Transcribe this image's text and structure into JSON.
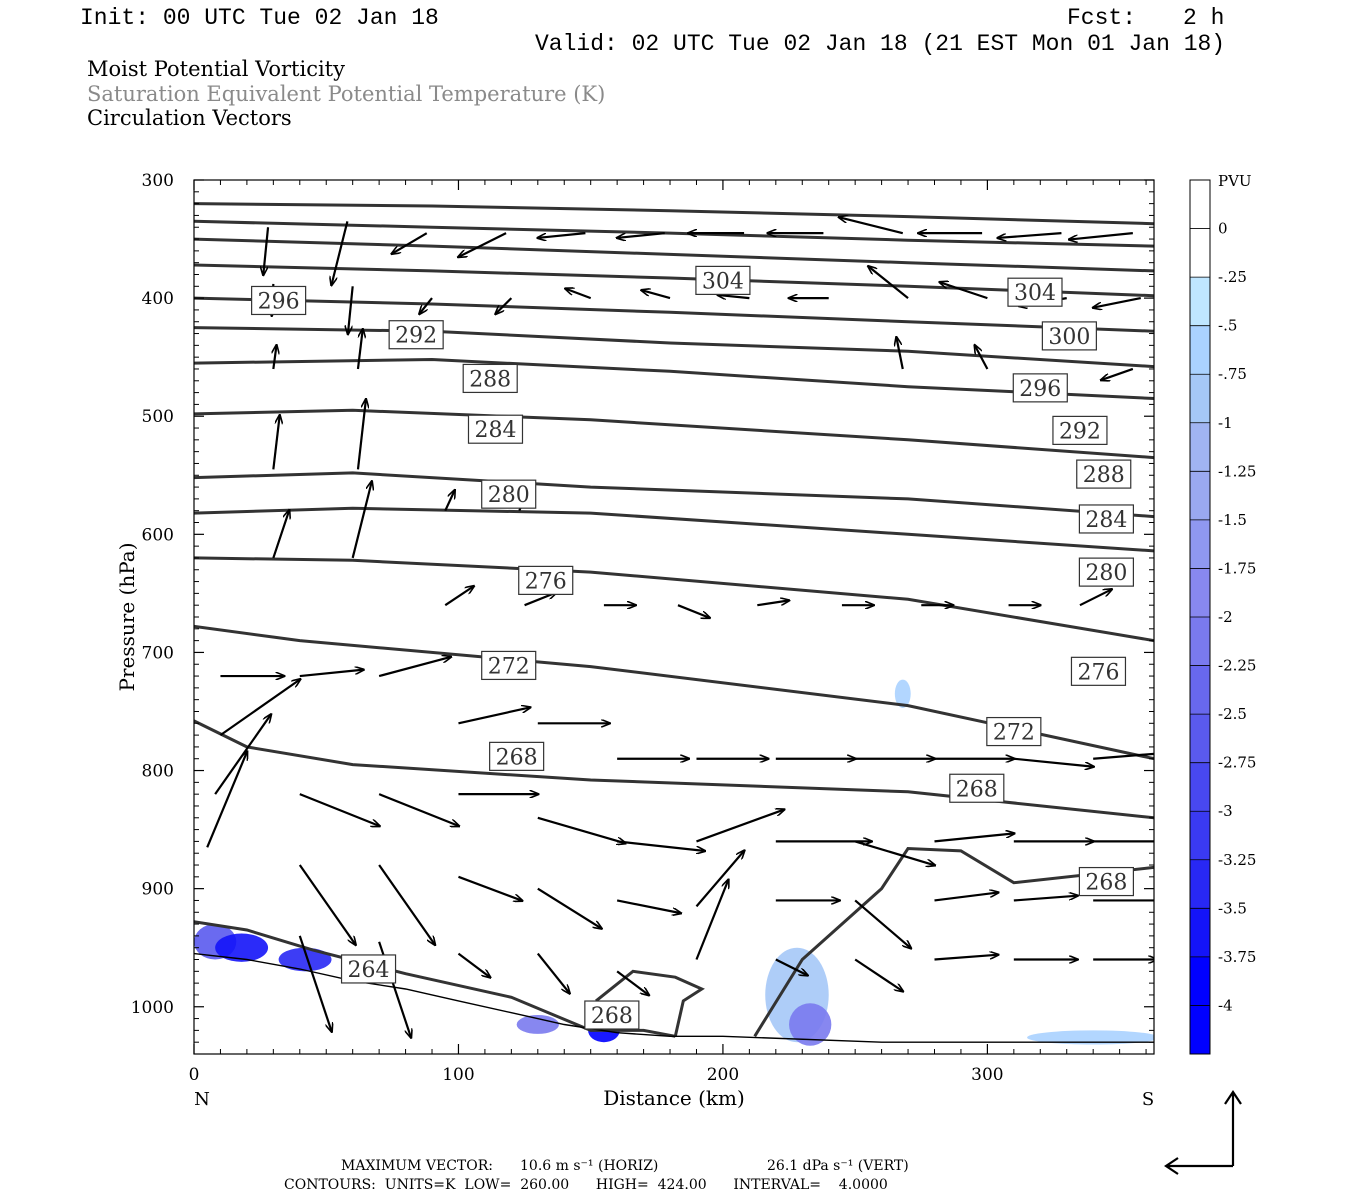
{
  "header": {
    "init": "Init: 00 UTC Tue 02 Jan 18",
    "fcst_label": "Fcst:",
    "fcst_value": "2 h",
    "valid": "Valid: 02 UTC Tue 02 Jan 18 (21 EST Mon 01 Jan 18)",
    "field1": "Moist Potential Vorticity",
    "field2": "Saturation Equivalent Potential Temperature (K)",
    "field3": "Circulation Vectors"
  },
  "footer": {
    "max_vector_label": "MAXIMUM VECTOR:",
    "max_horiz": "10.6 m s⁻¹ (HORIZ)",
    "max_vert": "26.1 dPa s⁻¹ (VERT)",
    "contours": "CONTOURS:  UNITS=K  LOW=  260.00      HIGH=  424.00      INTERVAL=    4.0000"
  },
  "chart_data": {
    "type": "cross-section",
    "xlabel": "Distance (km)",
    "ylabel": "Pressure (hPa)",
    "xlim": [
      0,
      363
    ],
    "ylim": [
      1040,
      300
    ],
    "x_ticks": [
      0,
      100,
      200,
      300
    ],
    "y_ticks": [
      300,
      400,
      500,
      600,
      700,
      800,
      900,
      1000
    ],
    "x_end_labels": {
      "left": "N",
      "right": "S"
    },
    "colorbar": {
      "unit": "PVU",
      "labels": [
        "0",
        "-.25",
        "-.5",
        "-.75",
        "-1",
        "-1.25",
        "-1.5",
        "-1.75",
        "-2",
        "-2.25",
        "-2.5",
        "-2.75",
        "-3",
        "-3.25",
        "-3.5",
        "-3.75",
        "-4"
      ],
      "colors": [
        "#ffffff",
        "#ffffff",
        "#bfe6ff",
        "#aad2ff",
        "#a5c8f7",
        "#a0b4f2",
        "#9aa9f0",
        "#8f98f0",
        "#8888ef",
        "#7a7aee",
        "#6868ee",
        "#5a5aee",
        "#4848f0",
        "#3a3af2",
        "#2828f4",
        "#1414f8",
        "#0000ff"
      ]
    },
    "contour_units": "K",
    "contour_low": 260,
    "contour_high": 424,
    "contour_interval": 4,
    "contours": [
      {
        "level": 304,
        "points": [
          [
            0,
            320
          ],
          [
            90,
            322
          ],
          [
            180,
            326
          ],
          [
            270,
            331
          ],
          [
            363,
            337
          ]
        ]
      },
      {
        "level": 304,
        "points": [
          [
            0,
            335
          ],
          [
            90,
            340
          ],
          [
            180,
            345
          ],
          [
            270,
            351
          ],
          [
            363,
            356
          ]
        ]
      },
      {
        "level": 304,
        "points": [
          [
            0,
            350
          ],
          [
            90,
            356
          ],
          [
            180,
            363
          ],
          [
            270,
            370
          ],
          [
            363,
            377
          ]
        ]
      },
      {
        "level": 304,
        "points": [
          [
            0,
            372
          ],
          [
            90,
            377
          ],
          [
            180,
            383
          ],
          [
            270,
            390
          ],
          [
            363,
            398
          ]
        ]
      },
      {
        "level": 300,
        "points": [
          [
            0,
            400
          ],
          [
            90,
            405
          ],
          [
            180,
            412
          ],
          [
            270,
            420
          ],
          [
            363,
            428
          ]
        ]
      },
      {
        "level": 296,
        "points": [
          [
            0,
            425
          ],
          [
            90,
            428
          ],
          [
            180,
            438
          ],
          [
            270,
            445
          ],
          [
            363,
            458
          ]
        ]
      },
      {
        "level": 292,
        "points": [
          [
            0,
            455
          ],
          [
            90,
            452
          ],
          [
            180,
            462
          ],
          [
            270,
            475
          ],
          [
            363,
            485
          ]
        ]
      },
      {
        "level": 288,
        "points": [
          [
            0,
            498
          ],
          [
            60,
            495
          ],
          [
            150,
            503
          ],
          [
            270,
            520
          ],
          [
            363,
            535
          ]
        ]
      },
      {
        "level": 284,
        "points": [
          [
            0,
            552
          ],
          [
            60,
            548
          ],
          [
            150,
            560
          ],
          [
            270,
            570
          ],
          [
            363,
            585
          ]
        ]
      },
      {
        "level": 280,
        "points": [
          [
            0,
            582
          ],
          [
            60,
            578
          ],
          [
            150,
            582
          ],
          [
            270,
            600
          ],
          [
            363,
            614
          ]
        ]
      },
      {
        "level": 276,
        "points": [
          [
            0,
            620
          ],
          [
            60,
            622
          ],
          [
            150,
            632
          ],
          [
            270,
            655
          ],
          [
            363,
            690
          ]
        ]
      },
      {
        "level": 272,
        "points": [
          [
            0,
            678
          ],
          [
            40,
            690
          ],
          [
            150,
            712
          ],
          [
            270,
            745
          ],
          [
            363,
            790
          ]
        ]
      },
      {
        "level": 268,
        "points": [
          [
            0,
            758
          ],
          [
            20,
            780
          ],
          [
            60,
            795
          ],
          [
            150,
            808
          ],
          [
            270,
            818
          ],
          [
            363,
            840
          ]
        ]
      },
      {
        "level": 268,
        "points": [
          [
            212,
            1025
          ],
          [
            230,
            960
          ],
          [
            260,
            900
          ],
          [
            270,
            866
          ],
          [
            290,
            868
          ],
          [
            310,
            895
          ],
          [
            363,
            882
          ]
        ]
      },
      {
        "level": 268,
        "points": [
          [
            0,
            928
          ],
          [
            20,
            935
          ],
          [
            45,
            952
          ],
          [
            80,
            972
          ],
          [
            120,
            992
          ],
          [
            150,
            1020
          ],
          [
            170,
            1020
          ],
          [
            182,
            1025
          ]
        ]
      },
      {
        "level": 268,
        "points": [
          [
            182,
            1025
          ],
          [
            185,
            995
          ],
          [
            192,
            985
          ],
          [
            182,
            975
          ],
          [
            166,
            970
          ],
          [
            152,
            995
          ]
        ]
      }
    ],
    "terrain": [
      [
        0,
        955
      ],
      [
        20,
        960
      ],
      [
        40,
        968
      ],
      [
        60,
        978
      ],
      [
        80,
        985
      ],
      [
        100,
        995
      ],
      [
        120,
        1005
      ],
      [
        140,
        1015
      ],
      [
        160,
        1022
      ],
      [
        180,
        1025
      ],
      [
        200,
        1025
      ],
      [
        260,
        1030
      ],
      [
        363,
        1030
      ]
    ],
    "vectors": [
      {
        "x": 28,
        "p": 340,
        "u": -0.3,
        "w": -3
      },
      {
        "x": 58,
        "p": 335,
        "u": -1,
        "w": -4
      },
      {
        "x": 88,
        "p": 345,
        "u": -2.2,
        "w": -1.3
      },
      {
        "x": 118,
        "p": 345,
        "u": -3,
        "w": -1.5
      },
      {
        "x": 148,
        "p": 345,
        "u": -3,
        "w": -0.3
      },
      {
        "x": 178,
        "p": 345,
        "u": -3,
        "w": -0.3
      },
      {
        "x": 208,
        "p": 345,
        "u": -3.5,
        "w": 0
      },
      {
        "x": 238,
        "p": 345,
        "u": -3.5,
        "w": 0
      },
      {
        "x": 268,
        "p": 345,
        "u": -4,
        "w": 1
      },
      {
        "x": 298,
        "p": 345,
        "u": -4,
        "w": 0
      },
      {
        "x": 328,
        "p": 345,
        "u": -4,
        "w": -0.3
      },
      {
        "x": 355,
        "p": 345,
        "u": -4,
        "w": -0.4
      },
      {
        "x": 30,
        "p": 388,
        "u": -0.1,
        "w": -2
      },
      {
        "x": 60,
        "p": 390,
        "u": -0.3,
        "w": -3
      },
      {
        "x": 90,
        "p": 400,
        "u": -0.8,
        "w": -1
      },
      {
        "x": 120,
        "p": 400,
        "u": -1,
        "w": -1
      },
      {
        "x": 150,
        "p": 400,
        "u": -1.6,
        "w": 0.6
      },
      {
        "x": 180,
        "p": 400,
        "u": -1.8,
        "w": 0.5
      },
      {
        "x": 210,
        "p": 400,
        "u": -2,
        "w": 0.2
      },
      {
        "x": 240,
        "p": 400,
        "u": -2.5,
        "w": 0
      },
      {
        "x": 270,
        "p": 400,
        "u": -2.5,
        "w": 2
      },
      {
        "x": 300,
        "p": 400,
        "u": -3,
        "w": 1
      },
      {
        "x": 330,
        "p": 400,
        "u": -3,
        "w": -0.5
      },
      {
        "x": 358,
        "p": 400,
        "u": -3,
        "w": -0.6
      },
      {
        "x": 30,
        "p": 460,
        "u": 0.2,
        "w": 1.5
      },
      {
        "x": 62,
        "p": 460,
        "u": 0.3,
        "w": 2.5
      },
      {
        "x": 268,
        "p": 460,
        "u": -0.4,
        "w": 2
      },
      {
        "x": 300,
        "p": 460,
        "u": -0.8,
        "w": 1.5
      },
      {
        "x": 355,
        "p": 460,
        "u": -2,
        "w": -0.7
      },
      {
        "x": 30,
        "p": 545,
        "u": 0.4,
        "w": 3.4
      },
      {
        "x": 62,
        "p": 545,
        "u": 0.5,
        "w": 4.4
      },
      {
        "x": 95,
        "p": 580,
        "u": 0.6,
        "w": 1.3
      },
      {
        "x": 123,
        "p": 580,
        "u": 0.5,
        "w": 1.2
      },
      {
        "x": 30,
        "p": 620,
        "u": 1,
        "w": 3
      },
      {
        "x": 60,
        "p": 620,
        "u": 1.2,
        "w": 4.8
      },
      {
        "x": 95,
        "p": 660,
        "u": 1.8,
        "w": 1.2
      },
      {
        "x": 125,
        "p": 660,
        "u": 2,
        "w": 0.8
      },
      {
        "x": 155,
        "p": 660,
        "u": 2,
        "w": 0
      },
      {
        "x": 183,
        "p": 660,
        "u": 2,
        "w": -0.8
      },
      {
        "x": 213,
        "p": 660,
        "u": 2,
        "w": 0.3
      },
      {
        "x": 245,
        "p": 660,
        "u": 2,
        "w": 0
      },
      {
        "x": 275,
        "p": 660,
        "u": 2,
        "w": 0
      },
      {
        "x": 308,
        "p": 660,
        "u": 2,
        "w": 0
      },
      {
        "x": 335,
        "p": 660,
        "u": 2,
        "w": 1
      },
      {
        "x": 10,
        "p": 720,
        "u": 4,
        "w": 0
      },
      {
        "x": 40,
        "p": 720,
        "u": 4,
        "w": 0.4
      },
      {
        "x": 70,
        "p": 720,
        "u": 4.5,
        "w": 1.2
      },
      {
        "x": 100,
        "p": 760,
        "u": 4.5,
        "w": 1
      },
      {
        "x": 130,
        "p": 760,
        "u": 4.5,
        "w": 0
      },
      {
        "x": 160,
        "p": 790,
        "u": 4.5,
        "w": 0
      },
      {
        "x": 190,
        "p": 790,
        "u": 4.5,
        "w": 0
      },
      {
        "x": 220,
        "p": 790,
        "u": 5,
        "w": 0
      },
      {
        "x": 250,
        "p": 790,
        "u": 5,
        "w": 0
      },
      {
        "x": 280,
        "p": 790,
        "u": 5,
        "w": 0
      },
      {
        "x": 310,
        "p": 790,
        "u": 5,
        "w": -0.5
      },
      {
        "x": 340,
        "p": 790,
        "u": 5,
        "w": 0.4
      },
      {
        "x": 10,
        "p": 770,
        "u": 5,
        "w": 3.5
      },
      {
        "x": 8,
        "p": 820,
        "u": 3.5,
        "w": 5
      },
      {
        "x": 5,
        "p": 865,
        "u": 2.5,
        "w": 6
      },
      {
        "x": 40,
        "p": 820,
        "u": 5,
        "w": -2
      },
      {
        "x": 70,
        "p": 820,
        "u": 5,
        "w": -2
      },
      {
        "x": 100,
        "p": 820,
        "u": 5,
        "w": 0
      },
      {
        "x": 130,
        "p": 840,
        "u": 5.5,
        "w": -1.6
      },
      {
        "x": 160,
        "p": 860,
        "u": 5.5,
        "w": -0.6
      },
      {
        "x": 190,
        "p": 860,
        "u": 5.5,
        "w": 2
      },
      {
        "x": 220,
        "p": 860,
        "u": 6,
        "w": 0
      },
      {
        "x": 250,
        "p": 860,
        "u": 5,
        "w": -1.5
      },
      {
        "x": 280,
        "p": 860,
        "u": 5,
        "w": 0.5
      },
      {
        "x": 310,
        "p": 860,
        "u": 5,
        "w": 0
      },
      {
        "x": 340,
        "p": 860,
        "u": 5,
        "w": 0
      },
      {
        "x": 40,
        "p": 880,
        "u": 3.5,
        "w": -5
      },
      {
        "x": 70,
        "p": 880,
        "u": 3.5,
        "w": -5
      },
      {
        "x": 100,
        "p": 890,
        "u": 4,
        "w": -1.5
      },
      {
        "x": 130,
        "p": 900,
        "u": 4,
        "w": -2.5
      },
      {
        "x": 160,
        "p": 910,
        "u": 4,
        "w": -0.8
      },
      {
        "x": 190,
        "p": 915,
        "u": 3,
        "w": 3.5
      },
      {
        "x": 220,
        "p": 910,
        "u": 4,
        "w": 0
      },
      {
        "x": 250,
        "p": 910,
        "u": 3.5,
        "w": -3
      },
      {
        "x": 280,
        "p": 910,
        "u": 4,
        "w": 0.5
      },
      {
        "x": 310,
        "p": 910,
        "u": 4,
        "w": 0.3
      },
      {
        "x": 340,
        "p": 910,
        "u": 4.5,
        "w": 0
      },
      {
        "x": 40,
        "p": 940,
        "u": 2,
        "w": -6
      },
      {
        "x": 70,
        "p": 945,
        "u": 2,
        "w": -6
      },
      {
        "x": 100,
        "p": 955,
        "u": 2,
        "w": -1.5
      },
      {
        "x": 130,
        "p": 955,
        "u": 2,
        "w": -2.5
      },
      {
        "x": 160,
        "p": 970,
        "u": 2,
        "w": -1.5
      },
      {
        "x": 190,
        "p": 960,
        "u": 2,
        "w": 5
      },
      {
        "x": 220,
        "p": 960,
        "u": 2,
        "w": -1
      },
      {
        "x": 250,
        "p": 960,
        "u": 3,
        "w": -2
      },
      {
        "x": 280,
        "p": 960,
        "u": 4,
        "w": 0.3
      },
      {
        "x": 310,
        "p": 960,
        "u": 4,
        "w": 0
      },
      {
        "x": 340,
        "p": 960,
        "u": 4,
        "w": 0
      }
    ],
    "pv_shading": [
      {
        "x": 8,
        "p": 945,
        "rx": 8,
        "rp": 15,
        "pvu": -2.5
      },
      {
        "x": 18,
        "p": 950,
        "rx": 10,
        "rp": 12,
        "pvu": -3.5
      },
      {
        "x": 42,
        "p": 960,
        "rx": 10,
        "rp": 10,
        "pvu": -3.25
      },
      {
        "x": 130,
        "p": 1015,
        "rx": 8,
        "rp": 8,
        "pvu": -2
      },
      {
        "x": 155,
        "p": 1020,
        "rx": 6,
        "rp": 10,
        "pvu": -4
      },
      {
        "x": 228,
        "p": 990,
        "rx": 12,
        "rp": 40,
        "pvu": -0.75
      },
      {
        "x": 233,
        "p": 1015,
        "rx": 8,
        "rp": 18,
        "pvu": -2
      },
      {
        "x": 268,
        "p": 735,
        "rx": 3,
        "rp": 12,
        "pvu": -0.5
      },
      {
        "x": 340,
        "p": 1026,
        "rx": 25,
        "rp": 6,
        "pvu": -0.5
      }
    ],
    "contour_labels": [
      {
        "text": "304",
        "x": 200,
        "p": 385
      },
      {
        "text": "304",
        "x": 318,
        "p": 395
      },
      {
        "text": "296",
        "x": 32,
        "p": 402
      },
      {
        "text": "300",
        "x": 331,
        "p": 432
      },
      {
        "text": "292",
        "x": 84,
        "p": 431
      },
      {
        "text": "288",
        "x": 112,
        "p": 468
      },
      {
        "text": "296",
        "x": 320,
        "p": 476
      },
      {
        "text": "284",
        "x": 114,
        "p": 511
      },
      {
        "text": "292",
        "x": 335,
        "p": 512
      },
      {
        "text": "288",
        "x": 344,
        "p": 549
      },
      {
        "text": "280",
        "x": 119,
        "p": 566
      },
      {
        "text": "284",
        "x": 345,
        "p": 587
      },
      {
        "text": "276",
        "x": 133,
        "p": 639
      },
      {
        "text": "280",
        "x": 345,
        "p": 632
      },
      {
        "text": "272",
        "x": 119,
        "p": 711
      },
      {
        "text": "276",
        "x": 342,
        "p": 716
      },
      {
        "text": "272",
        "x": 310,
        "p": 767
      },
      {
        "text": "268",
        "x": 122,
        "p": 788
      },
      {
        "text": "268",
        "x": 296,
        "p": 815
      },
      {
        "text": "268",
        "x": 345,
        "p": 894
      },
      {
        "text": "264",
        "x": 66,
        "p": 968
      },
      {
        "text": "268",
        "x": 158,
        "p": 1007
      }
    ]
  },
  "colors": {
    "contour": "#333333",
    "accent_pv": "#0000ff"
  }
}
